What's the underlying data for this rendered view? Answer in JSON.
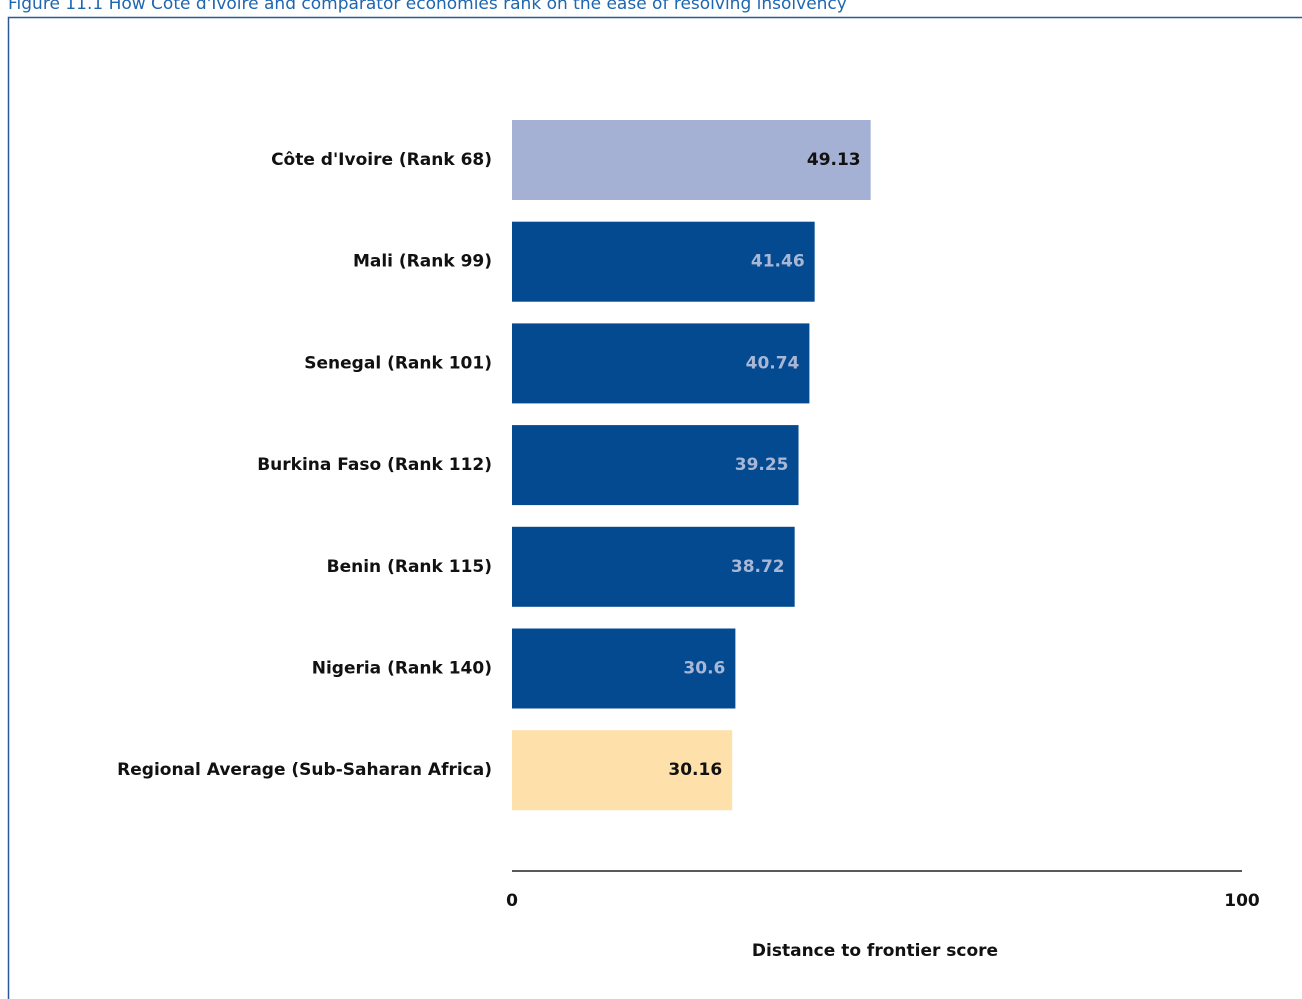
{
  "chart_data": {
    "type": "barh",
    "title": "Figure 11.1 How Côte d'Ivoire and comparator economies rank on the ease of resolving insolvency",
    "categories": [
      "Côte d'Ivoire (Rank 68)",
      "Mali (Rank 99)",
      "Senegal (Rank 101)",
      "Burkina Faso (Rank 112)",
      "Benin (Rank 115)",
      "Nigeria (Rank 140)",
      "Regional Average (Sub-Saharan Africa)"
    ],
    "values": [
      49.13,
      41.46,
      40.74,
      39.25,
      38.72,
      30.6,
      30.16
    ],
    "colors": [
      "#a4b0d4",
      "#034a90",
      "#034a90",
      "#034a90",
      "#034a90",
      "#034a90",
      "#fde0aa"
    ],
    "xlim": [
      0,
      100
    ],
    "xticks": [
      0,
      100
    ],
    "xlabel": "Distance to frontier score"
  }
}
